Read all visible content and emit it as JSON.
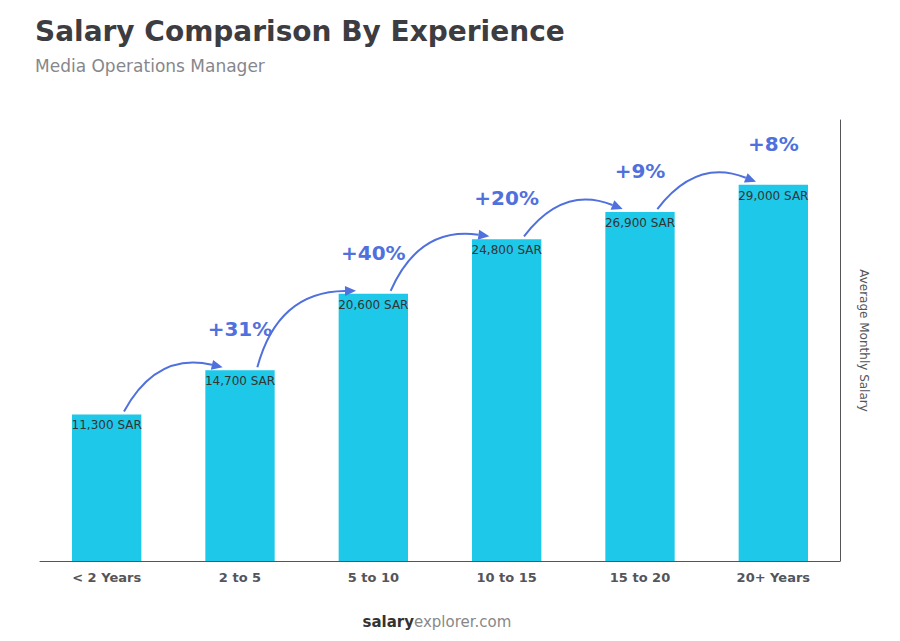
{
  "chart_data": {
    "type": "bar",
    "title": "Salary Comparison By Experience",
    "subtitle": "Media Operations Manager",
    "ylabel": "Average Monthly Salary",
    "categories": [
      "< 2 Years",
      "2 to 5",
      "5 to 10",
      "10 to 15",
      "15 to 20",
      "20+ Years"
    ],
    "values": [
      11300,
      14700,
      20600,
      24800,
      26900,
      29000
    ],
    "value_labels": [
      "11,300 SAR",
      "14,700 SAR",
      "20,600 SAR",
      "24,800 SAR",
      "26,900 SAR",
      "29,000 SAR"
    ],
    "data_labels": true,
    "color": "#1EC8E8",
    "ylim": [
      0,
      34000
    ],
    "tick_labels": "x",
    "grid": false,
    "annotations": [
      {
        "text": "+31%",
        "from": "< 2 Years",
        "to": "2 to 5"
      },
      {
        "text": "+40%",
        "from": "2 to 5",
        "to": "5 to 10"
      },
      {
        "text": "+20%",
        "from": "5 to 10",
        "to": "10 to 15"
      },
      {
        "text": "+9%",
        "from": "10 to 15",
        "to": "15 to 20"
      },
      {
        "text": "+8%",
        "from": "15 to 20",
        "to": "20+ Years"
      }
    ],
    "watermark": [
      "salary",
      "explorer.com"
    ]
  }
}
